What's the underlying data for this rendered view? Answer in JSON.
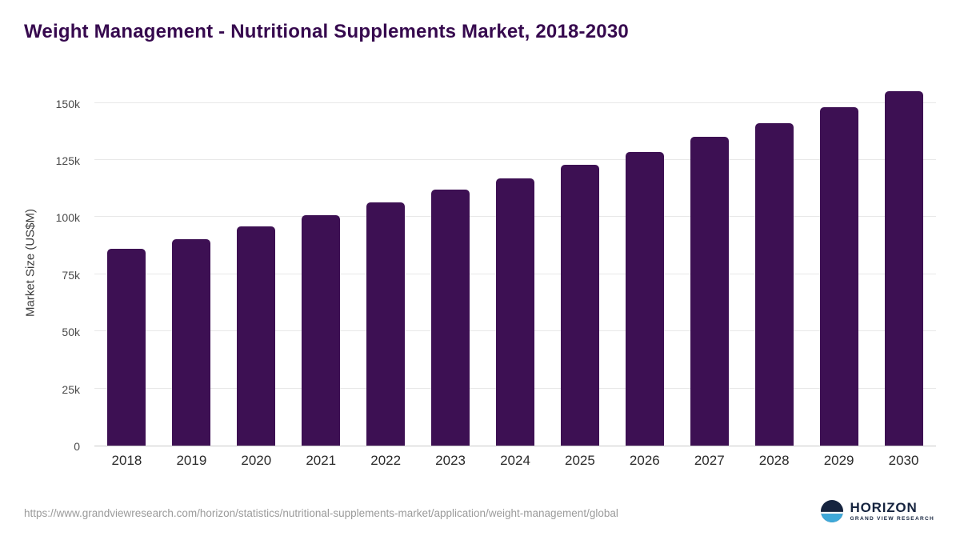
{
  "title": "Weight Management - Nutritional Supplements Market, 2018-2030",
  "chart_data": {
    "type": "bar",
    "title": "Weight Management - Nutritional Supplements Market, 2018-2030",
    "categories": [
      "2018",
      "2019",
      "2020",
      "2021",
      "2022",
      "2023",
      "2024",
      "2025",
      "2026",
      "2027",
      "2028",
      "2029",
      "2030"
    ],
    "values": [
      86000,
      90500,
      96000,
      101000,
      106500,
      112000,
      117000,
      123000,
      128500,
      135000,
      141000,
      148000,
      155000
    ],
    "xlabel": "",
    "ylabel": "Market Size (US$M)",
    "ylim": [
      0,
      160000
    ],
    "yticks": [
      0,
      25000,
      50000,
      75000,
      100000,
      125000,
      150000
    ],
    "ytick_labels": [
      "0",
      "25k",
      "50k",
      "75k",
      "100k",
      "125k",
      "150k"
    ],
    "bar_color": "#3d1053",
    "grid": true,
    "legend": false
  },
  "colors": {
    "title": "#36094e",
    "bar": "#3d1053",
    "gridline": "#e8e8e8",
    "logo_navy": "#16243f",
    "logo_blue": "#3fa9d9"
  },
  "footer": {
    "source_url": "https://www.grandviewresearch.com/horizon/statistics/nutritional-supplements-market/application/weight-management/global",
    "logo_text": "HORIZON",
    "logo_subtext": "GRAND VIEW RESEARCH"
  }
}
